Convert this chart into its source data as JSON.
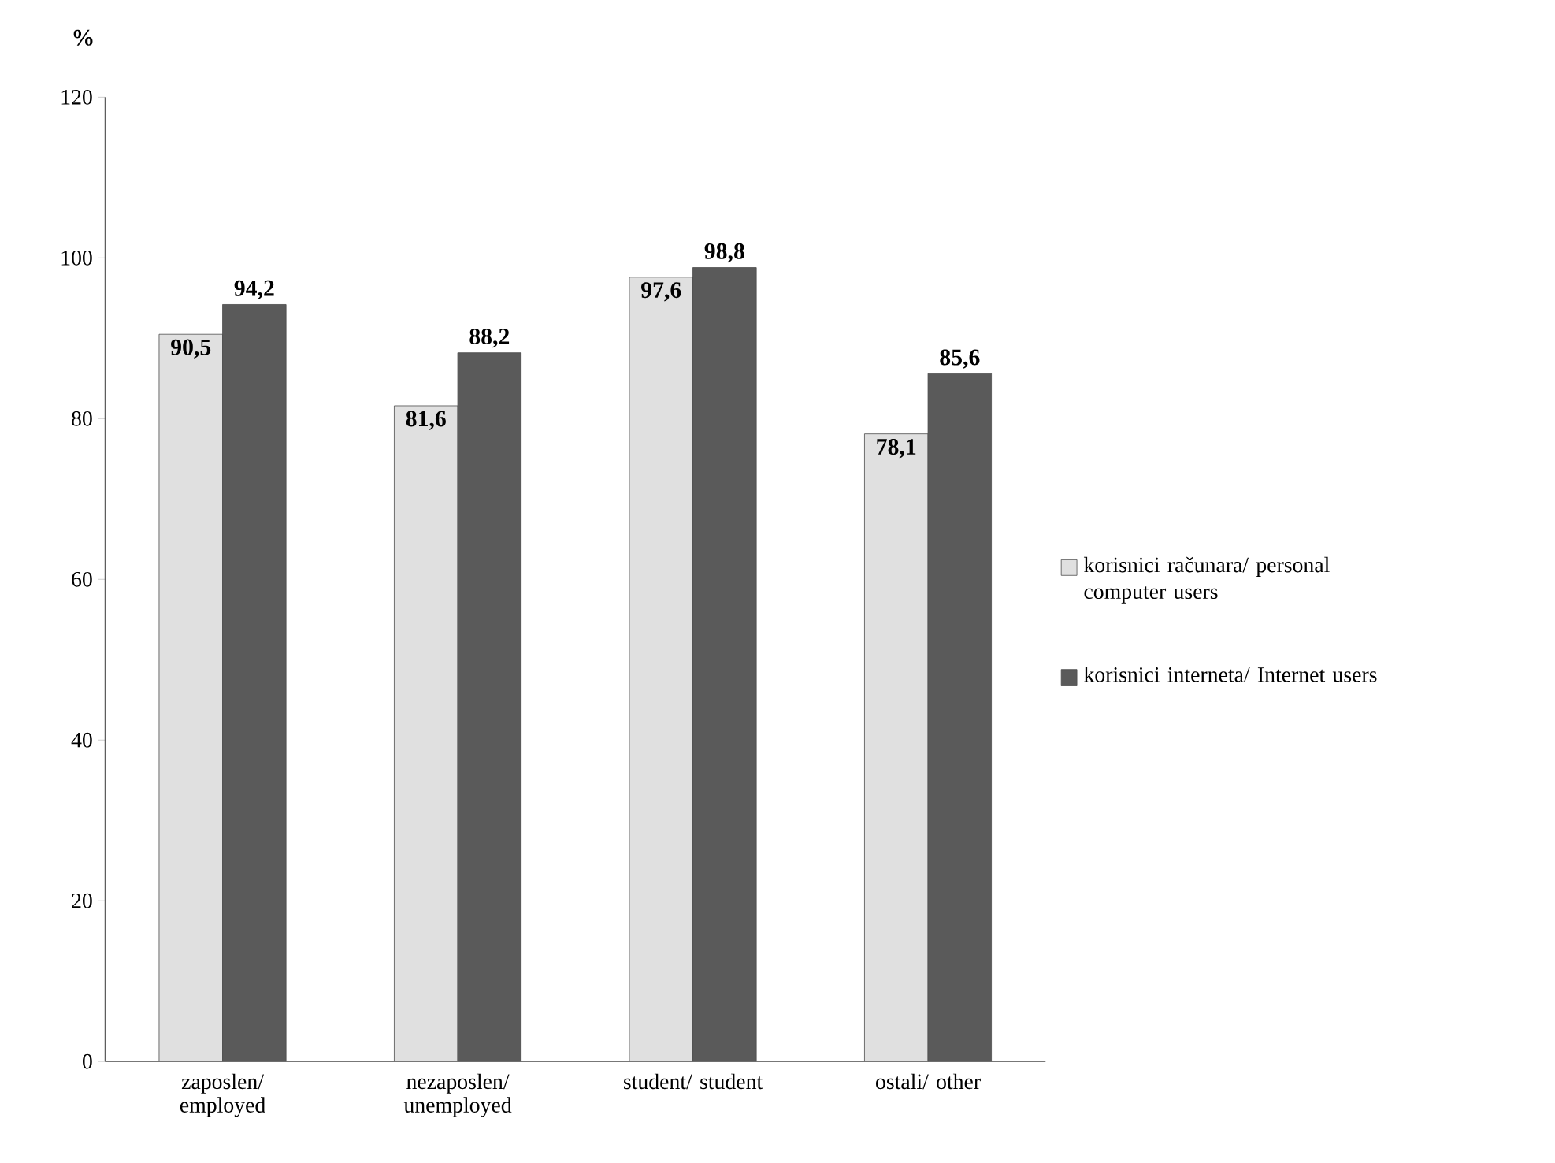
{
  "chart_data": {
    "type": "bar",
    "ylabel": "%",
    "categories": [
      "zaposlen/ employed",
      "nezaposlen/ unemployed",
      "student/ student",
      "ostali/ other"
    ],
    "series": [
      {
        "name": "korisnici računara/ personal computer users",
        "color": "#e0e0e0",
        "values": [
          90.5,
          81.6,
          97.6,
          78.1
        ],
        "value_labels": [
          "90,5",
          "81,6",
          "97,6",
          "78,1"
        ]
      },
      {
        "name": "korisnici interneta/ Internet users",
        "color": "#5a5a5a",
        "values": [
          94.2,
          88.2,
          98.8,
          85.6
        ],
        "value_labels": [
          "94,2",
          "88,2",
          "98,8",
          "85,6"
        ]
      }
    ],
    "ylim": [
      0,
      120
    ],
    "yticks": [
      0,
      20,
      40,
      60,
      80,
      100,
      120
    ],
    "grid": false,
    "legend": "right"
  }
}
